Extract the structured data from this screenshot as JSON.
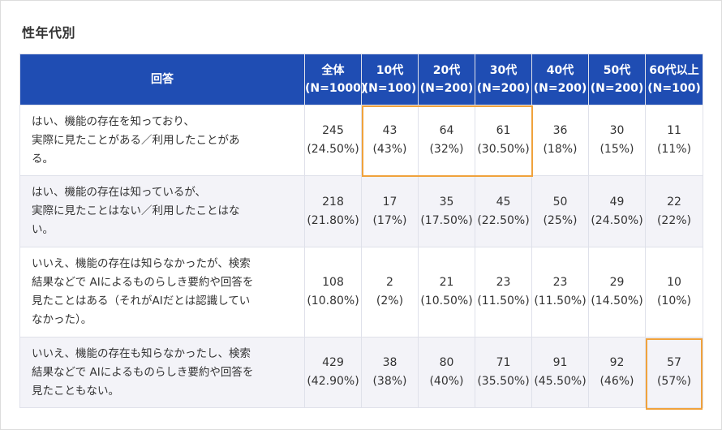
{
  "section_title": "性年代別",
  "colors": {
    "header_bg": "#1f4db3",
    "highlight": "#f0a23c",
    "alt_row": "#f3f3f8"
  },
  "table": {
    "headers": [
      {
        "l1": "回答",
        "l2": ""
      },
      {
        "l1": "全体",
        "l2": "(N=1000)"
      },
      {
        "l1": "10代",
        "l2": "(N=100)"
      },
      {
        "l1": "20代",
        "l2": "(N=200)"
      },
      {
        "l1": "30代",
        "l2": "(N=200)"
      },
      {
        "l1": "40代",
        "l2": "(N=200)"
      },
      {
        "l1": "50代",
        "l2": "(N=200)"
      },
      {
        "l1": "60代以上",
        "l2": "(N=100)"
      }
    ],
    "rows": [
      {
        "answer": [
          "はい、機能の存在を知っており、",
          "実際に見たことがある／利用したことがあ",
          "る。"
        ],
        "cells": [
          {
            "n": "245",
            "p": "(24.50%)"
          },
          {
            "n": "43",
            "p": "(43%)"
          },
          {
            "n": "64",
            "p": "(32%)"
          },
          {
            "n": "61",
            "p": "(30.50%)"
          },
          {
            "n": "36",
            "p": "(18%)"
          },
          {
            "n": "30",
            "p": "(15%)"
          },
          {
            "n": "11",
            "p": "(11%)"
          }
        ]
      },
      {
        "answer": [
          "はい、機能の存在は知っているが、",
          "実際に見たことはない／利用したことはな",
          "い。"
        ],
        "cells": [
          {
            "n": "218",
            "p": "(21.80%)"
          },
          {
            "n": "17",
            "p": "(17%)"
          },
          {
            "n": "35",
            "p": "(17.50%)"
          },
          {
            "n": "45",
            "p": "(22.50%)"
          },
          {
            "n": "50",
            "p": "(25%)"
          },
          {
            "n": "49",
            "p": "(24.50%)"
          },
          {
            "n": "22",
            "p": "(22%)"
          }
        ]
      },
      {
        "answer": [
          "いいえ、機能の存在は知らなかったが、検索",
          "結果などで AIによるものらしき要約や回答を",
          "見たことはある（それがAIだとは認識してい",
          "なかった）。"
        ],
        "cells": [
          {
            "n": "108",
            "p": "(10.80%)"
          },
          {
            "n": "2",
            "p": "(2%)"
          },
          {
            "n": "21",
            "p": "(10.50%)"
          },
          {
            "n": "23",
            "p": "(11.50%)"
          },
          {
            "n": "23",
            "p": "(11.50%)"
          },
          {
            "n": "29",
            "p": "(14.50%)"
          },
          {
            "n": "10",
            "p": "(10%)"
          }
        ]
      },
      {
        "answer": [
          "いいえ、機能の存在も知らなかったし、検索",
          "結果などで AIによるものらしき要約や回答を",
          "見たこともない。"
        ],
        "cells": [
          {
            "n": "429",
            "p": "(42.90%)"
          },
          {
            "n": "38",
            "p": "(38%)"
          },
          {
            "n": "80",
            "p": "(40%)"
          },
          {
            "n": "71",
            "p": "(35.50%)"
          },
          {
            "n": "91",
            "p": "(45.50%)"
          },
          {
            "n": "92",
            "p": "(46%)"
          },
          {
            "n": "57",
            "p": "(57%)"
          }
        ]
      }
    ]
  }
}
